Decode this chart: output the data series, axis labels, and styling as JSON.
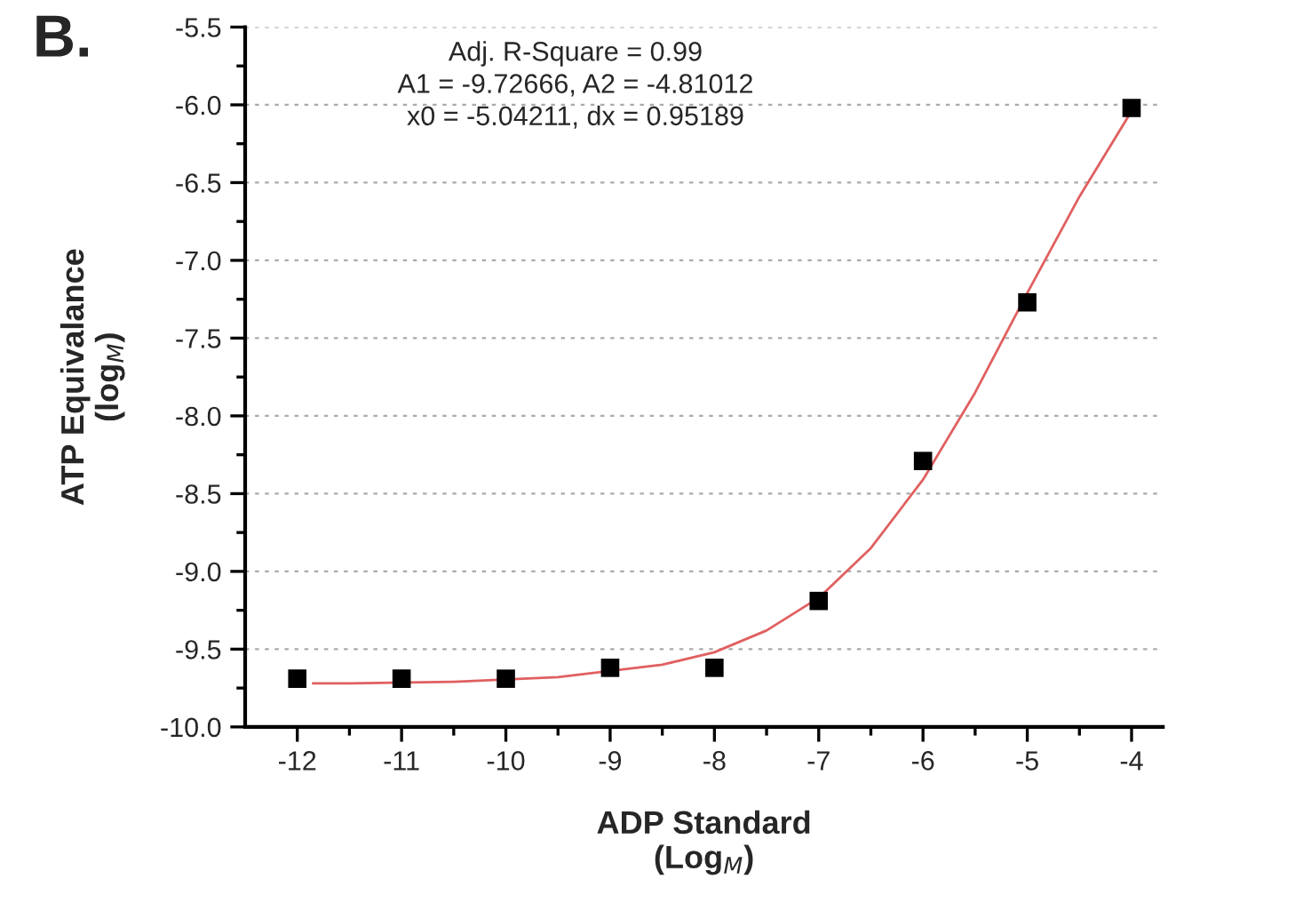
{
  "chart_data": {
    "type": "scatter",
    "xlabel": "ADP Standard\n(Log$_{M}$)",
    "ylabel": "ATP Equivalance\n(log$_{M}$)",
    "annotations": [
      "B.",
      "Adj. R-Square = 0.99\nA1 = -9.72666, A2 = -4.81012\nx0 = -5.04211, dx = 0.95189"
    ],
    "series": [
      {
        "color": "#000000",
        "marker": "square",
        "x": [
          -12,
          -11,
          -10,
          -9,
          -8,
          -7,
          -6,
          -5,
          -4
        ],
        "values": [
          -9.69,
          -9.69,
          -9.69,
          -9.62,
          -9.62,
          -9.19,
          -8.29,
          -7.27,
          -6.02
        ]
      },
      {
        "type": "line",
        "color": "#e06060",
        "line_style": "solid",
        "x": [
          -11.85,
          -11.5,
          -10.5,
          -9.5,
          -8.5,
          -8,
          -7.5,
          -7,
          -6.5,
          -6,
          -5.5,
          -5,
          -4.5,
          -4
        ],
        "values": [
          -9.72,
          -9.72,
          -9.71,
          -9.68,
          -9.6,
          -9.52,
          -9.38,
          -9.17,
          -8.85,
          -8.41,
          -7.85,
          -7.21,
          -6.59,
          -6.04
        ]
      }
    ],
    "xlim": [
      -12.5,
      -3.7
    ],
    "ylim": [
      -10.0,
      -5.5
    ],
    "xticks": [
      -12,
      {
        "value": -11.5,
        "label": null
      },
      -11,
      {
        "value": -10.5,
        "label": null
      },
      -10,
      {
        "value": -9.5,
        "label": null
      },
      -9,
      {
        "value": -8.5,
        "label": null
      },
      -8,
      {
        "value": -7.5,
        "label": null
      },
      -7,
      {
        "value": -6.5,
        "label": null
      },
      -6,
      {
        "value": -5.5,
        "label": null
      },
      -5,
      {
        "value": -4.5,
        "label": null
      },
      -4
    ],
    "yticks": [
      {
        "value": -10.0,
        "label": "-10.0"
      },
      {
        "value": -9.75,
        "label": null
      },
      {
        "value": -9.5,
        "label": "-9.5"
      },
      {
        "value": -9.25,
        "label": null
      },
      {
        "value": -9.0,
        "label": "-9.0"
      },
      {
        "value": -8.75,
        "label": null
      },
      {
        "value": -8.5,
        "label": "-8.5"
      },
      {
        "value": -8.25,
        "label": null
      },
      {
        "value": -8.0,
        "label": "-8.0"
      },
      {
        "value": -7.75,
        "label": null
      },
      {
        "value": -7.5,
        "label": "-7.5"
      },
      {
        "value": -7.25,
        "label": null
      },
      {
        "value": -7.0,
        "label": "-7.0"
      },
      {
        "value": -6.75,
        "label": null
      },
      {
        "value": -6.5,
        "label": "-6.5"
      },
      {
        "value": -6.25,
        "label": null
      },
      {
        "value": -6.0,
        "label": "-6.0"
      },
      {
        "value": -5.75,
        "label": null
      },
      {
        "value": -5.5,
        "label": "-5.5"
      }
    ],
    "grid": "y"
  }
}
